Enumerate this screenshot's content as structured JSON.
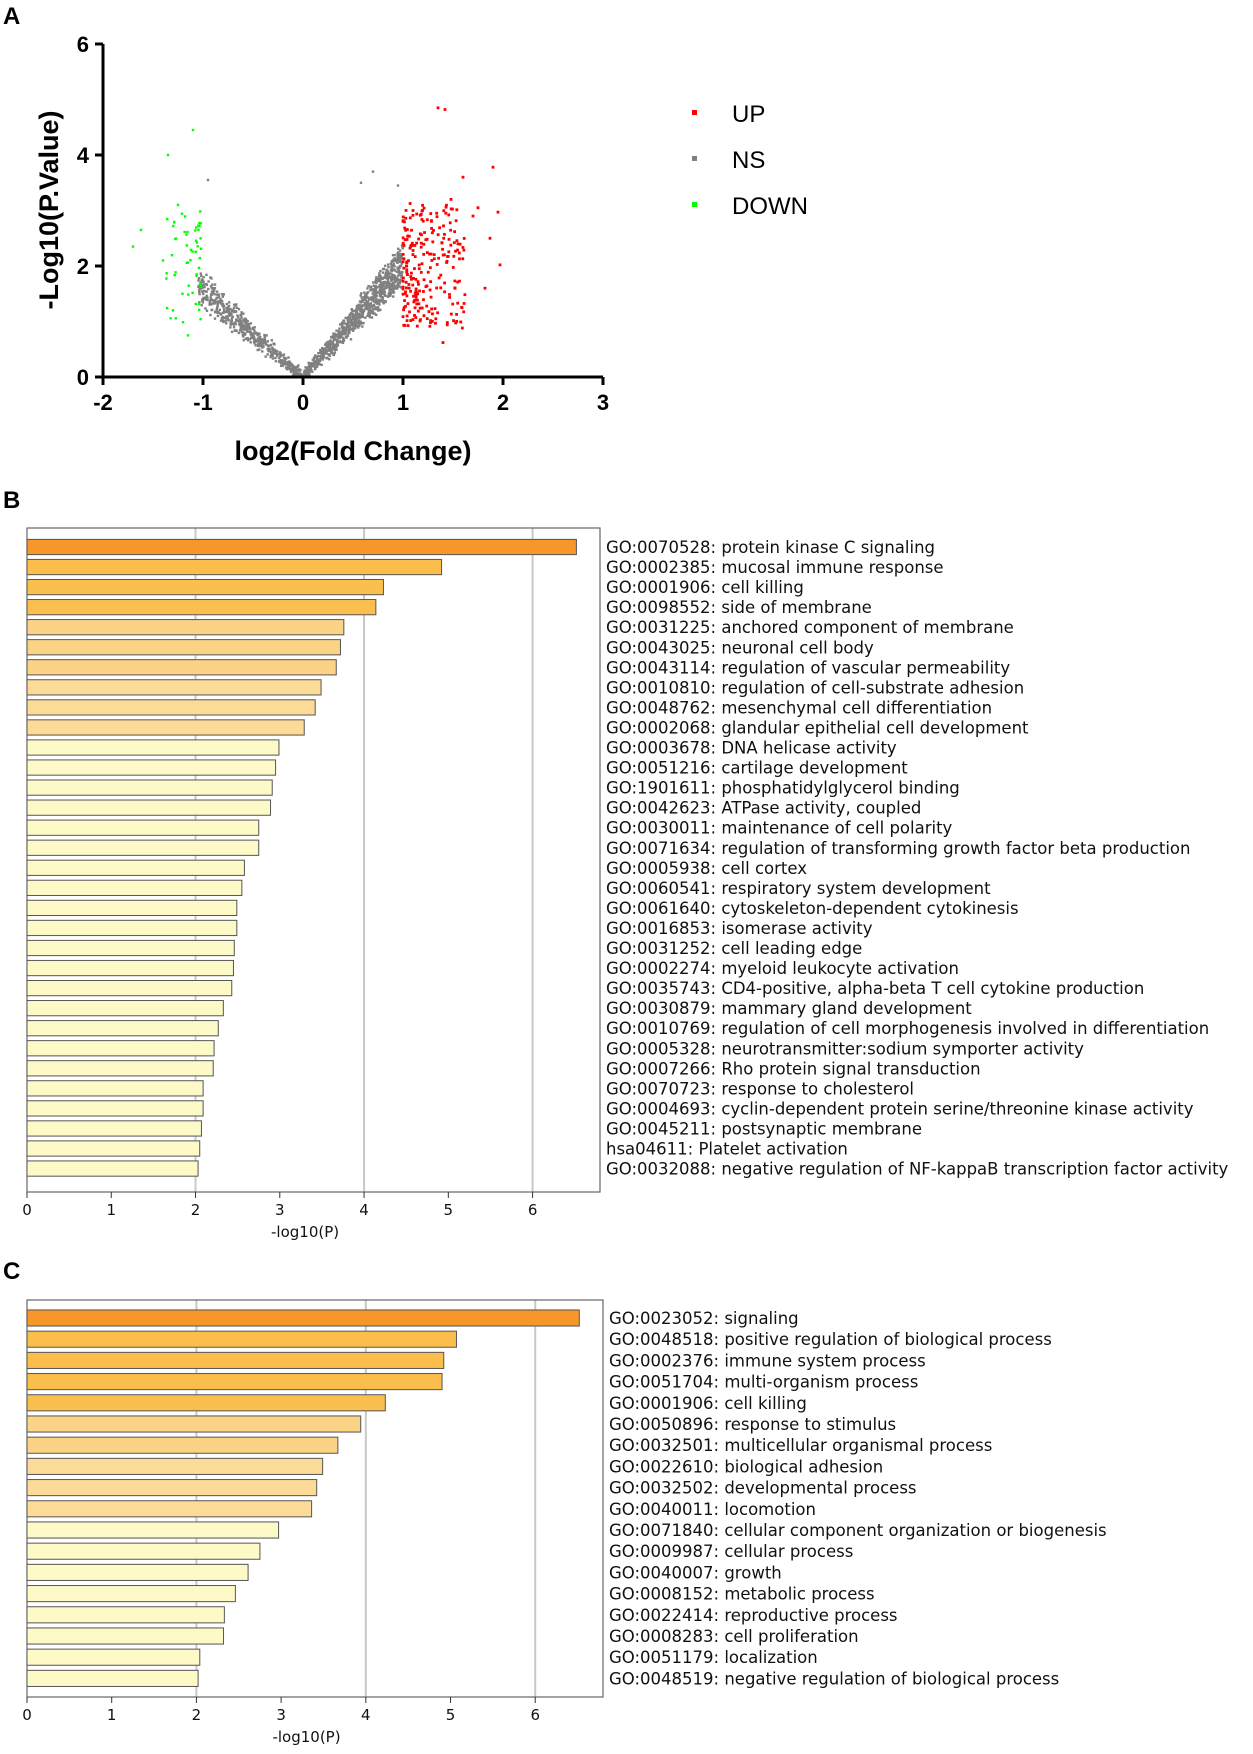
{
  "panels": {
    "a": "A",
    "b": "B",
    "c": "C"
  },
  "volcano": {
    "type": "scatter",
    "xlabel": "log2(Fold Change)",
    "ylabel": "-Log10(P.Value)",
    "xlim": [
      -2,
      3
    ],
    "ylim": [
      0,
      6
    ],
    "xticks": [
      "-2",
      "-1",
      "0",
      "1",
      "2",
      "3"
    ],
    "yticks": [
      "0",
      "2",
      "4",
      "6"
    ],
    "legend": [
      {
        "label": "UP",
        "color": "#ff0000"
      },
      {
        "label": "NS",
        "color": "#808080"
      },
      {
        "label": "DOWN",
        "color": "#00ff00"
      }
    ],
    "fold_change_threshold": 1,
    "highlighted_points": {
      "up": [
        [
          1.35,
          4.85
        ],
        [
          1.42,
          4.82
        ],
        [
          1.9,
          3.78
        ],
        [
          1.6,
          3.6
        ],
        [
          1.48,
          3.2
        ],
        [
          1.1,
          3.0
        ],
        [
          1.7,
          2.9
        ],
        [
          1.95,
          2.97
        ],
        [
          1.87,
          2.5
        ],
        [
          1.97,
          2.02
        ],
        [
          1.82,
          1.6
        ],
        [
          1.4,
          0.62
        ],
        [
          1.75,
          3.05
        ],
        [
          1.55,
          2.4
        ]
      ],
      "down": [
        [
          -1.1,
          4.45
        ],
        [
          -1.35,
          4.0
        ],
        [
          -1.25,
          3.1
        ],
        [
          -1.62,
          2.65
        ],
        [
          -1.7,
          2.35
        ],
        [
          -1.3,
          1.2
        ],
        [
          -1.15,
          0.75
        ],
        [
          -1.4,
          2.1
        ]
      ],
      "ns": [
        [
          -0.95,
          3.55
        ],
        [
          0.7,
          3.7
        ],
        [
          0.95,
          3.45
        ],
        [
          0.58,
          3.5
        ]
      ]
    }
  },
  "chart_data": [
    {
      "type": "bar",
      "orientation": "horizontal",
      "xlabel": "-log10(P)",
      "xlim": [
        0,
        6.8
      ],
      "xticks": [
        "0",
        "1",
        "2",
        "3",
        "4",
        "5",
        "6"
      ],
      "categories": [
        "GO:0070528: protein kinase C signaling",
        "GO:0002385: mucosal immune response",
        "GO:0001906: cell killing",
        "GO:0098552: side of membrane",
        "GO:0031225: anchored component of membrane",
        "GO:0043025: neuronal cell body",
        "GO:0043114: regulation of vascular permeability",
        "GO:0010810: regulation of cell-substrate adhesion",
        "GO:0048762: mesenchymal cell differentiation",
        "GO:0002068: glandular epithelial cell development",
        "GO:0003678: DNA helicase activity",
        "GO:0051216: cartilage development",
        "GO:1901611: phosphatidylglycerol binding",
        "GO:0042623: ATPase activity, coupled",
        "GO:0030011: maintenance of cell polarity",
        "GO:0071634: regulation of transforming growth factor beta production",
        "GO:0005938: cell cortex",
        "GO:0060541: respiratory system development",
        "GO:0061640: cytoskeleton-dependent cytokinesis",
        "GO:0016853: isomerase activity",
        "GO:0031252: cell leading edge",
        "GO:0002274: myeloid leukocyte activation",
        "GO:0035743: CD4-positive, alpha-beta T cell cytokine production",
        "GO:0030879: mammary gland development",
        "GO:0010769: regulation of cell morphogenesis involved in differentiation",
        "GO:0005328: neurotransmitter:sodium symporter activity",
        "GO:0007266: Rho protein signal transduction",
        "GO:0070723: response to cholesterol",
        "GO:0004693: cyclin-dependent protein serine/threonine kinase activity",
        "GO:0045211: postsynaptic membrane",
        "hsa04611: Platelet activation",
        "GO:0032088: negative regulation of NF-kappaB transcription factor activity"
      ],
      "values": [
        6.52,
        4.92,
        4.23,
        4.14,
        3.76,
        3.72,
        3.67,
        3.49,
        3.42,
        3.29,
        2.99,
        2.95,
        2.91,
        2.89,
        2.75,
        2.75,
        2.58,
        2.55,
        2.49,
        2.49,
        2.46,
        2.45,
        2.43,
        2.33,
        2.27,
        2.22,
        2.21,
        2.09,
        2.09,
        2.07,
        2.05,
        2.03
      ]
    },
    {
      "type": "bar",
      "orientation": "horizontal",
      "xlabel": "-log10(P)",
      "xlim": [
        0,
        6.8
      ],
      "xticks": [
        "0",
        "1",
        "2",
        "3",
        "4",
        "5",
        "6"
      ],
      "categories": [
        "GO:0023052: signaling",
        "GO:0048518: positive regulation of biological process",
        "GO:0002376: immune system process",
        "GO:0051704: multi-organism process",
        "GO:0001906: cell killing",
        "GO:0050896: response to stimulus",
        "GO:0032501: multicellular organismal process",
        "GO:0022610: biological adhesion",
        "GO:0032502: developmental process",
        "GO:0040011: locomotion",
        "GO:0071840: cellular component organization or biogenesis",
        "GO:0009987: cellular process",
        "GO:0040007: growth",
        "GO:0008152: metabolic process",
        "GO:0022414: reproductive process",
        "GO:0008283: cell proliferation",
        "GO:0051179: localization",
        "GO:0048519: negative regulation of biological process"
      ],
      "values": [
        6.52,
        5.07,
        4.92,
        4.9,
        4.23,
        3.94,
        3.67,
        3.49,
        3.42,
        3.36,
        2.97,
        2.75,
        2.61,
        2.46,
        2.33,
        2.32,
        2.04,
        2.02
      ]
    }
  ]
}
